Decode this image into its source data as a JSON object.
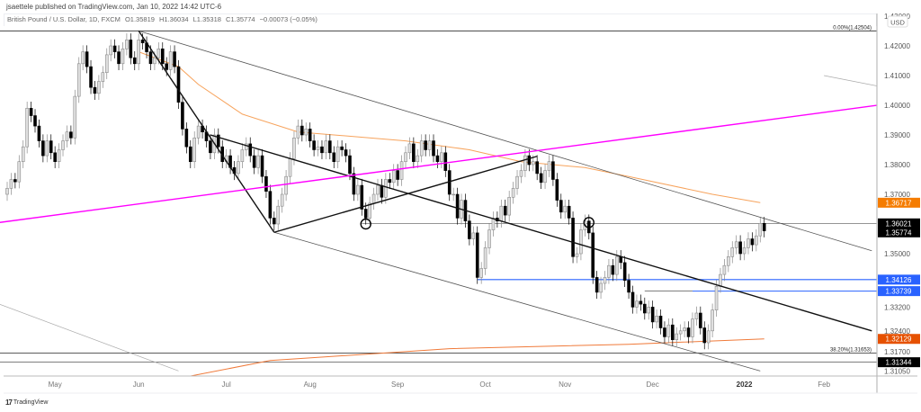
{
  "header": {
    "publisher": "jsaettele published on TradingView.com, Jan 10, 2022 14:42 UTC-6",
    "symbol": "British Pound / U.S. Dollar, 1D, FXCM",
    "open": "O1.35819",
    "high": "H1.36034",
    "low": "L1.35318",
    "close": "C1.35774",
    "change": "−0.00073 (−0.05%)"
  },
  "footer": {
    "brand": "TradingView",
    "logo_icon": "tradingview-logo-icon"
  },
  "colors": {
    "up_fill": "#e0e0e0",
    "up_stroke": "#8a8a8a",
    "down": "#000000",
    "ma_fast": "#f7a35c",
    "ma_slow": "#f07a3a",
    "magenta": "#ff00ff",
    "blue": "#2962ff",
    "orange_label": "#f57c00",
    "red_orange_label": "#e65100",
    "black_label": "#000000"
  },
  "chart_data": {
    "type": "candlestick",
    "currency": "USD",
    "y_range": [
      1.3095,
      1.4295
    ],
    "y_ticks": [
      "1.43000",
      "1.42000",
      "1.41000",
      "1.40000",
      "1.39000",
      "1.38000",
      "1.37000",
      "1.35000",
      "1.33200",
      "1.32400",
      "1.31700",
      "1.31050"
    ],
    "x_ticks": [
      {
        "label": "May",
        "day": 12
      },
      {
        "label": "Jun",
        "day": 33
      },
      {
        "label": "Jul",
        "day": 55
      },
      {
        "label": "Aug",
        "day": 76
      },
      {
        "label": "Sep",
        "day": 98
      },
      {
        "label": "Oct",
        "day": 120
      },
      {
        "label": "Nov",
        "day": 140
      },
      {
        "label": "Dec",
        "day": 162
      },
      {
        "label": "2022",
        "day": 185,
        "bold": true
      },
      {
        "label": "Feb",
        "day": 205
      }
    ],
    "closes": [
      1.372,
      1.375,
      1.3742,
      1.381,
      1.386,
      1.399,
      1.3965,
      1.393,
      1.388,
      1.383,
      1.388,
      1.384,
      1.381,
      1.385,
      1.388,
      1.391,
      1.389,
      1.403,
      1.414,
      1.418,
      1.413,
      1.406,
      1.404,
      1.408,
      1.411,
      1.417,
      1.42,
      1.418,
      1.414,
      1.419,
      1.422,
      1.416,
      1.414,
      1.422,
      1.421,
      1.418,
      1.414,
      1.416,
      1.419,
      1.414,
      1.412,
      1.418,
      1.413,
      1.401,
      1.392,
      1.386,
      1.381,
      1.389,
      1.393,
      1.391,
      1.388,
      1.384,
      1.39,
      1.386,
      1.381,
      1.383,
      1.379,
      1.377,
      1.381,
      1.385,
      1.387,
      1.383,
      1.379,
      1.383,
      1.376,
      1.371,
      1.362,
      1.36,
      1.366,
      1.37,
      1.376,
      1.382,
      1.389,
      1.393,
      1.39,
      1.392,
      1.388,
      1.385,
      1.386,
      1.384,
      1.388,
      1.384,
      1.381,
      1.386,
      1.385,
      1.383,
      1.377,
      1.37,
      1.373,
      1.365,
      1.362,
      1.367,
      1.37,
      1.373,
      1.369,
      1.375,
      1.374,
      1.378,
      1.375,
      1.381,
      1.384,
      1.387,
      1.381,
      1.383,
      1.388,
      1.385,
      1.388,
      1.383,
      1.381,
      1.384,
      1.378,
      1.37,
      1.37,
      1.362,
      1.368,
      1.361,
      1.355,
      1.357,
      1.342,
      1.345,
      1.352,
      1.358,
      1.362,
      1.361,
      1.366,
      1.363,
      1.369,
      1.372,
      1.376,
      1.378,
      1.383,
      1.38,
      1.381,
      1.377,
      1.374,
      1.378,
      1.381,
      1.375,
      1.368,
      1.364,
      1.366,
      1.362,
      1.349,
      1.35,
      1.358,
      1.361,
      1.357,
      1.342,
      1.337,
      1.34,
      1.342,
      1.346,
      1.343,
      1.349,
      1.347,
      1.341,
      1.337,
      1.332,
      1.334,
      1.333,
      1.33,
      1.332,
      1.327,
      1.329,
      1.325,
      1.322,
      1.326,
      1.321,
      1.323,
      1.324,
      1.325,
      1.322,
      1.328,
      1.33,
      1.325,
      1.32,
      1.324,
      1.331,
      1.339,
      1.343,
      1.346,
      1.349,
      1.352,
      1.354,
      1.35,
      1.352,
      1.355,
      1.353,
      1.356,
      1.3602,
      1.3577
    ],
    "ma_fast": [
      [
        33,
        1.418
      ],
      [
        43,
        1.413
      ],
      [
        48,
        1.407
      ],
      [
        59,
        1.397
      ],
      [
        73,
        1.391
      ],
      [
        100,
        1.388
      ],
      [
        116,
        1.385
      ],
      [
        129,
        1.381
      ],
      [
        145,
        1.379
      ],
      [
        156,
        1.376
      ],
      [
        177,
        1.37
      ],
      [
        189,
        1.3672
      ]
    ],
    "ma_slow": [
      [
        43,
        1.308
      ],
      [
        66,
        1.314
      ],
      [
        111,
        1.318
      ],
      [
        156,
        1.3195
      ],
      [
        190,
        1.3213
      ]
    ],
    "fib_levels": [
      {
        "label": "0.00%(1.42504)",
        "price": 1.42504
      },
      {
        "label": "38.20%(1.31653)",
        "price": 1.31653
      }
    ],
    "horizontal_lines": [
      {
        "price": 1.36021,
        "from_day": 89,
        "color": "#555555"
      },
      {
        "price": 1.34126,
        "from_day": 118,
        "color": "#2962ff"
      },
      {
        "price": 1.33739,
        "from_day": 160,
        "to_day": 172,
        "color": "#555555"
      },
      {
        "price": 1.33739,
        "from_day": 172,
        "color": "#2962ff"
      },
      {
        "price": 1.31344,
        "from_day": -2,
        "color": "#555555"
      }
    ],
    "trend_lines": [
      {
        "from": [
          33,
          1.42504
        ],
        "to": [
          217,
          1.351
        ],
        "color": "#555555",
        "width": 0.8
      },
      {
        "from": [
          67,
          1.3572
        ],
        "to": [
          189,
          1.3105
        ],
        "color": "#555555",
        "width": 0.8
      },
      {
        "from": [
          33,
          1.42504
        ],
        "to": [
          67,
          1.3572
        ],
        "color": "#111111",
        "width": 1.4
      },
      {
        "from": [
          67,
          1.3572
        ],
        "to": [
          133,
          1.3828
        ],
        "color": "#111111",
        "width": 1.4
      },
      {
        "from": [
          51,
          1.39
        ],
        "to": [
          217,
          1.324
        ],
        "color": "#111111",
        "width": 1.4
      },
      {
        "from": [
          -2,
          1.3605
        ],
        "to": [
          224,
          1.401
        ],
        "color": "#ff00ff",
        "width": 1.4
      },
      {
        "from": [
          -2,
          1.333
        ],
        "to": [
          43,
          1.3105
        ],
        "color": "#aaaaaa",
        "width": 0.7
      },
      {
        "from": [
          205,
          1.41
        ],
        "to": [
          224,
          1.405
        ],
        "color": "#aaaaaa",
        "width": 0.7
      }
    ],
    "circles": [
      [
        90,
        1.36
      ],
      [
        146,
        1.3605
      ]
    ],
    "price_labels": [
      {
        "text": "1.36717",
        "price": 1.36717,
        "bg": "#f57c00"
      },
      {
        "text": "1.36021",
        "price": 1.36021,
        "bg": "#000000"
      },
      {
        "text": "1.35774",
        "price": 1.35774,
        "bg": "#000000"
      },
      {
        "text": "1.34126",
        "price": 1.34126,
        "bg": "#2962ff"
      },
      {
        "text": "1.33739",
        "price": 1.33739,
        "bg": "#2962ff"
      },
      {
        "text": "1.32129",
        "price": 1.32129,
        "bg": "#e65100"
      },
      {
        "text": "1.31344",
        "price": 1.31344,
        "bg": "#000000"
      }
    ]
  }
}
